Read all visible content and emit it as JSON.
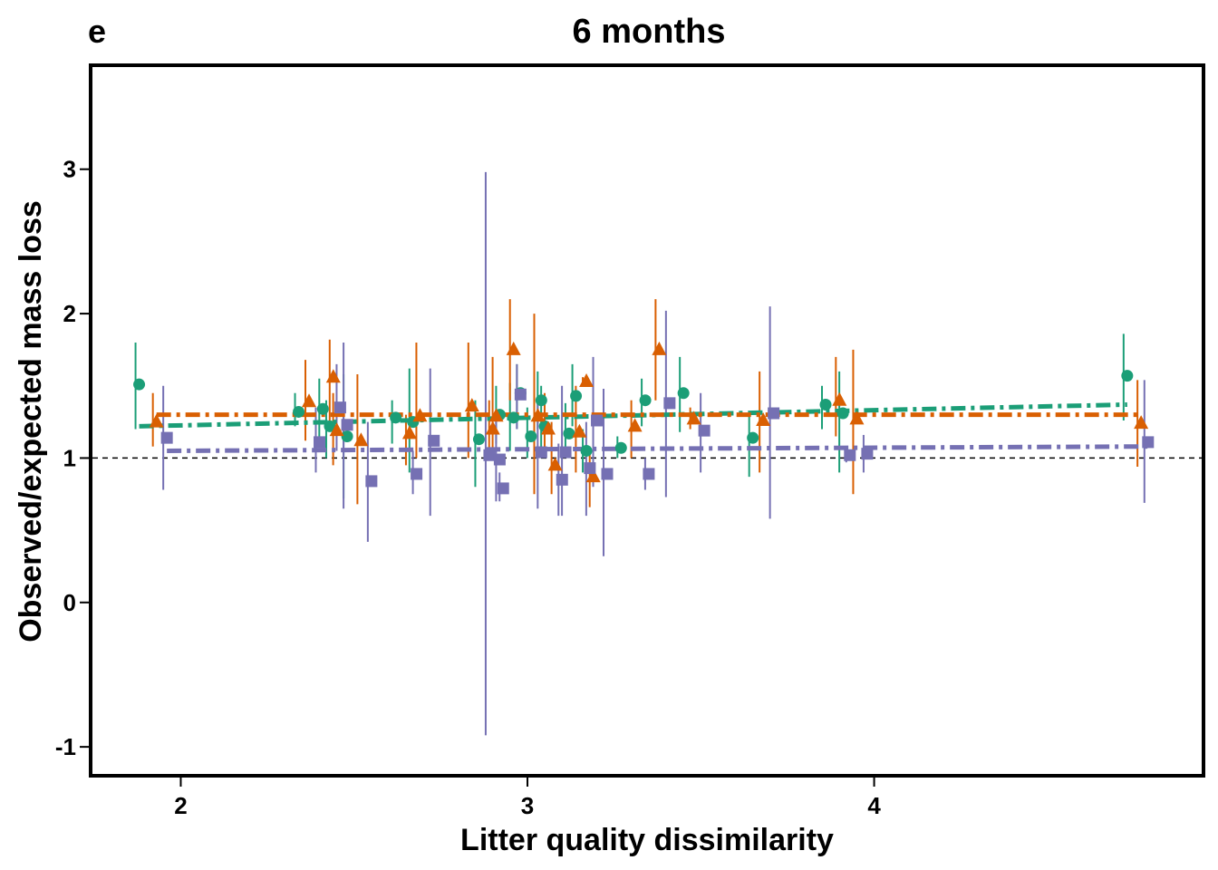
{
  "chart_data": {
    "type": "scatter",
    "panel_label": "e",
    "title": "6 months",
    "xlabel": "Litter quality dissimilarity",
    "ylabel": "Observed/expected mass loss",
    "xlim": [
      1.74,
      4.95
    ],
    "ylim": [
      -1.2,
      3.72
    ],
    "x_ticks": [
      2,
      3,
      4
    ],
    "x_tick_labels": [
      "2",
      "3",
      "4"
    ],
    "y_ticks": [
      -1,
      0,
      1,
      2,
      3
    ],
    "y_tick_labels": [
      "-1",
      "0",
      "1",
      "2",
      "3"
    ],
    "reference_line": {
      "y": 1,
      "style": "dashed"
    },
    "grid": false,
    "legend": "none",
    "series": [
      {
        "marker": "circle",
        "color": "#1b9e77",
        "points": [
          {
            "x": 1.88,
            "y": 1.51,
            "lo": 1.2,
            "hi": 1.8
          },
          {
            "x": 2.34,
            "y": 1.32,
            "lo": 1.22,
            "hi": 1.45
          },
          {
            "x": 2.41,
            "y": 1.34,
            "lo": 1.1,
            "hi": 1.55
          },
          {
            "x": 2.43,
            "y": 1.22,
            "lo": 1.0,
            "hi": 1.4
          },
          {
            "x": 2.48,
            "y": 1.15,
            "lo": 0.72,
            "hi": 1.58
          },
          {
            "x": 2.62,
            "y": 1.28,
            "lo": 1.1,
            "hi": 1.4
          },
          {
            "x": 2.67,
            "y": 1.25,
            "lo": 0.9,
            "hi": 1.62
          },
          {
            "x": 2.86,
            "y": 1.13,
            "lo": 0.8,
            "hi": 1.4
          },
          {
            "x": 2.92,
            "y": 1.3,
            "lo": 1.1,
            "hi": 1.5
          },
          {
            "x": 2.96,
            "y": 1.28,
            "lo": 1.05,
            "hi": 1.52
          },
          {
            "x": 2.98,
            "y": 1.45,
            "lo": 1.2,
            "hi": 1.65
          },
          {
            "x": 3.01,
            "y": 1.15,
            "lo": 1.0,
            "hi": 1.35
          },
          {
            "x": 3.04,
            "y": 1.4,
            "lo": 1.2,
            "hi": 1.6
          },
          {
            "x": 3.05,
            "y": 1.22,
            "lo": 1.0,
            "hi": 1.5
          },
          {
            "x": 3.12,
            "y": 1.17,
            "lo": 1.0,
            "hi": 1.38
          },
          {
            "x": 3.14,
            "y": 1.43,
            "lo": 1.22,
            "hi": 1.65
          },
          {
            "x": 3.17,
            "y": 1.05,
            "lo": 0.9,
            "hi": 1.2
          },
          {
            "x": 3.27,
            "y": 1.07,
            "lo": 1.0,
            "hi": 1.15
          },
          {
            "x": 3.34,
            "y": 1.4,
            "lo": 1.22,
            "hi": 1.55
          },
          {
            "x": 3.45,
            "y": 1.45,
            "lo": 1.18,
            "hi": 1.7
          },
          {
            "x": 3.65,
            "y": 1.14,
            "lo": 0.87,
            "hi": 1.3
          },
          {
            "x": 3.86,
            "y": 1.37,
            "lo": 1.2,
            "hi": 1.5
          },
          {
            "x": 3.91,
            "y": 1.31,
            "lo": 0.9,
            "hi": 1.6
          },
          {
            "x": 4.73,
            "y": 1.57,
            "lo": 1.26,
            "hi": 1.86
          }
        ],
        "fit": {
          "x": [
            1.88,
            4.73
          ],
          "y": [
            1.22,
            1.37
          ]
        }
      },
      {
        "marker": "triangle",
        "color": "#d95f02",
        "points": [
          {
            "x": 1.93,
            "y": 1.25,
            "lo": 1.08,
            "hi": 1.45
          },
          {
            "x": 2.37,
            "y": 1.39,
            "lo": 1.12,
            "hi": 1.68
          },
          {
            "x": 2.44,
            "y": 1.56,
            "lo": 1.25,
            "hi": 1.82
          },
          {
            "x": 2.45,
            "y": 1.19,
            "lo": 0.95,
            "hi": 1.45
          },
          {
            "x": 2.52,
            "y": 1.12,
            "lo": 0.68,
            "hi": 1.58
          },
          {
            "x": 2.66,
            "y": 1.17,
            "lo": 0.95,
            "hi": 1.3
          },
          {
            "x": 2.69,
            "y": 1.29,
            "lo": 1.0,
            "hi": 1.8
          },
          {
            "x": 2.84,
            "y": 1.36,
            "lo": 1.0,
            "hi": 1.8
          },
          {
            "x": 2.9,
            "y": 1.2,
            "lo": 1.02,
            "hi": 1.4
          },
          {
            "x": 2.91,
            "y": 1.29,
            "lo": 1.05,
            "hi": 1.7
          },
          {
            "x": 2.96,
            "y": 1.75,
            "lo": 1.4,
            "hi": 2.1
          },
          {
            "x": 3.03,
            "y": 1.29,
            "lo": 0.75,
            "hi": 2.0
          },
          {
            "x": 3.06,
            "y": 1.2,
            "lo": 1.0,
            "hi": 1.45
          },
          {
            "x": 3.08,
            "y": 0.95,
            "lo": 0.75,
            "hi": 1.25
          },
          {
            "x": 3.15,
            "y": 1.18,
            "lo": 0.9,
            "hi": 1.5
          },
          {
            "x": 3.17,
            "y": 1.53,
            "lo": 1.5,
            "hi": 1.56
          },
          {
            "x": 3.19,
            "y": 0.87,
            "lo": 0.66,
            "hi": 1.08
          },
          {
            "x": 3.31,
            "y": 1.22,
            "lo": 1.0,
            "hi": 1.4
          },
          {
            "x": 3.38,
            "y": 1.75,
            "lo": 1.4,
            "hi": 2.1
          },
          {
            "x": 3.48,
            "y": 1.27,
            "lo": 1.2,
            "hi": 1.35
          },
          {
            "x": 3.68,
            "y": 1.26,
            "lo": 0.9,
            "hi": 1.6
          },
          {
            "x": 3.9,
            "y": 1.4,
            "lo": 1.15,
            "hi": 1.7
          },
          {
            "x": 3.95,
            "y": 1.27,
            "lo": 0.75,
            "hi": 1.75
          },
          {
            "x": 4.77,
            "y": 1.24,
            "lo": 0.94,
            "hi": 1.54
          }
        ],
        "fit": {
          "x": [
            1.93,
            4.77
          ],
          "y": [
            1.3,
            1.3
          ]
        }
      },
      {
        "marker": "square",
        "color": "#7570b3",
        "points": [
          {
            "x": 1.96,
            "y": 1.14,
            "lo": 0.78,
            "hi": 1.5
          },
          {
            "x": 2.4,
            "y": 1.11,
            "lo": 0.9,
            "hi": 1.35
          },
          {
            "x": 2.46,
            "y": 1.35,
            "lo": 1.05,
            "hi": 1.65
          },
          {
            "x": 2.48,
            "y": 1.23,
            "lo": 0.65,
            "hi": 1.8
          },
          {
            "x": 2.55,
            "y": 0.84,
            "lo": 0.42,
            "hi": 1.25
          },
          {
            "x": 2.68,
            "y": 0.89,
            "lo": 0.75,
            "hi": 1.05
          },
          {
            "x": 2.73,
            "y": 1.12,
            "lo": 0.6,
            "hi": 1.62
          },
          {
            "x": 2.89,
            "y": 1.02,
            "lo": -0.92,
            "hi": 2.98
          },
          {
            "x": 2.92,
            "y": 0.99,
            "lo": 0.7,
            "hi": 1.3
          },
          {
            "x": 2.93,
            "y": 0.79,
            "lo": 0.7,
            "hi": 0.9
          },
          {
            "x": 2.98,
            "y": 1.44,
            "lo": 1.2,
            "hi": 1.65
          },
          {
            "x": 3.04,
            "y": 1.04,
            "lo": 0.65,
            "hi": 1.4
          },
          {
            "x": 3.1,
            "y": 0.85,
            "lo": 0.6,
            "hi": 1.1
          },
          {
            "x": 3.11,
            "y": 1.04,
            "lo": 0.6,
            "hi": 1.5
          },
          {
            "x": 3.18,
            "y": 0.93,
            "lo": 0.6,
            "hi": 1.25
          },
          {
            "x": 3.2,
            "y": 1.26,
            "lo": 0.8,
            "hi": 1.7
          },
          {
            "x": 3.23,
            "y": 0.89,
            "lo": 0.32,
            "hi": 1.48
          },
          {
            "x": 3.35,
            "y": 0.89,
            "lo": 0.78,
            "hi": 1.0
          },
          {
            "x": 3.41,
            "y": 1.38,
            "lo": 0.73,
            "hi": 2.02
          },
          {
            "x": 3.51,
            "y": 1.19,
            "lo": 0.9,
            "hi": 1.45
          },
          {
            "x": 3.71,
            "y": 1.31,
            "lo": 0.58,
            "hi": 2.05
          },
          {
            "x": 3.93,
            "y": 1.02,
            "lo": 0.97,
            "hi": 1.07
          },
          {
            "x": 3.98,
            "y": 1.03,
            "lo": 0.9,
            "hi": 1.16
          },
          {
            "x": 4.79,
            "y": 1.11,
            "lo": 0.69,
            "hi": 1.54
          }
        ],
        "fit": {
          "x": [
            1.96,
            4.79
          ],
          "y": [
            1.05,
            1.08
          ]
        }
      }
    ]
  }
}
